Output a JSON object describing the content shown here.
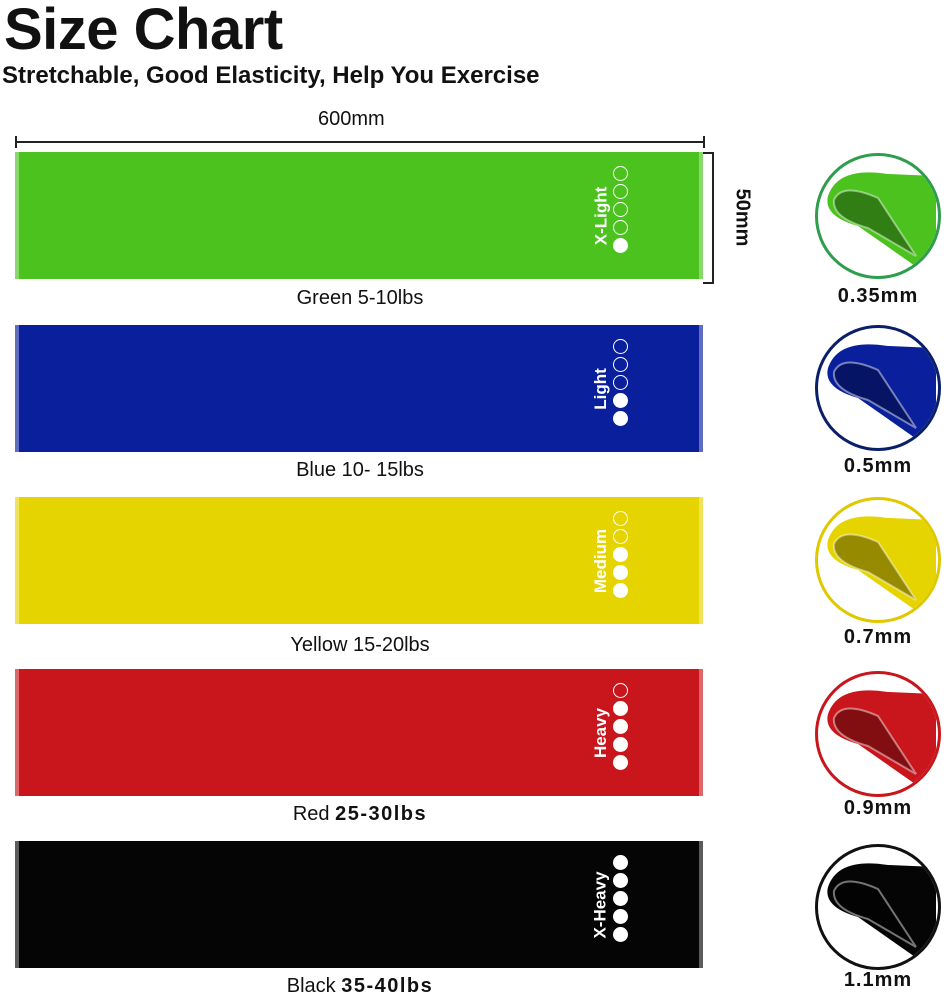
{
  "title": "Size Chart",
  "subtitle": "Stretchable, Good Elasticity, Help You Exercise",
  "dimensions": {
    "length": "600mm",
    "width": "50mm"
  },
  "bands": [
    {
      "color_name": "Green",
      "weight": "5-10lbs",
      "weight_bold": false,
      "level": "X-Light",
      "level_value": 1,
      "max_level": 5,
      "thickness": "0.35mm",
      "hex": "#4cc21f",
      "ring": "#2e9e4e"
    },
    {
      "color_name": "Blue",
      "weight": "10- 15lbs",
      "weight_bold": false,
      "level": "Light",
      "level_value": 2,
      "max_level": 5,
      "thickness": "0.5mm",
      "hex": "#0a1f9c",
      "ring": "#0a1f6a"
    },
    {
      "color_name": "Yellow",
      "weight": "15-20lbs",
      "weight_bold": false,
      "level": "Medium",
      "level_value": 3,
      "max_level": 5,
      "thickness": "0.7mm",
      "hex": "#e6d400",
      "ring": "#e0c800"
    },
    {
      "color_name": "Red",
      "weight": "25-30lbs",
      "weight_bold": true,
      "level": "Heavy",
      "level_value": 4,
      "max_level": 5,
      "thickness": "0.9mm",
      "hex": "#c8161c",
      "ring": "#c8161c"
    },
    {
      "color_name": "Black",
      "weight": "35-40lbs",
      "weight_bold": true,
      "level": "X-Heavy",
      "level_value": 5,
      "max_level": 5,
      "thickness": "1.1mm",
      "hex": "#050505",
      "ring": "#111111"
    }
  ]
}
